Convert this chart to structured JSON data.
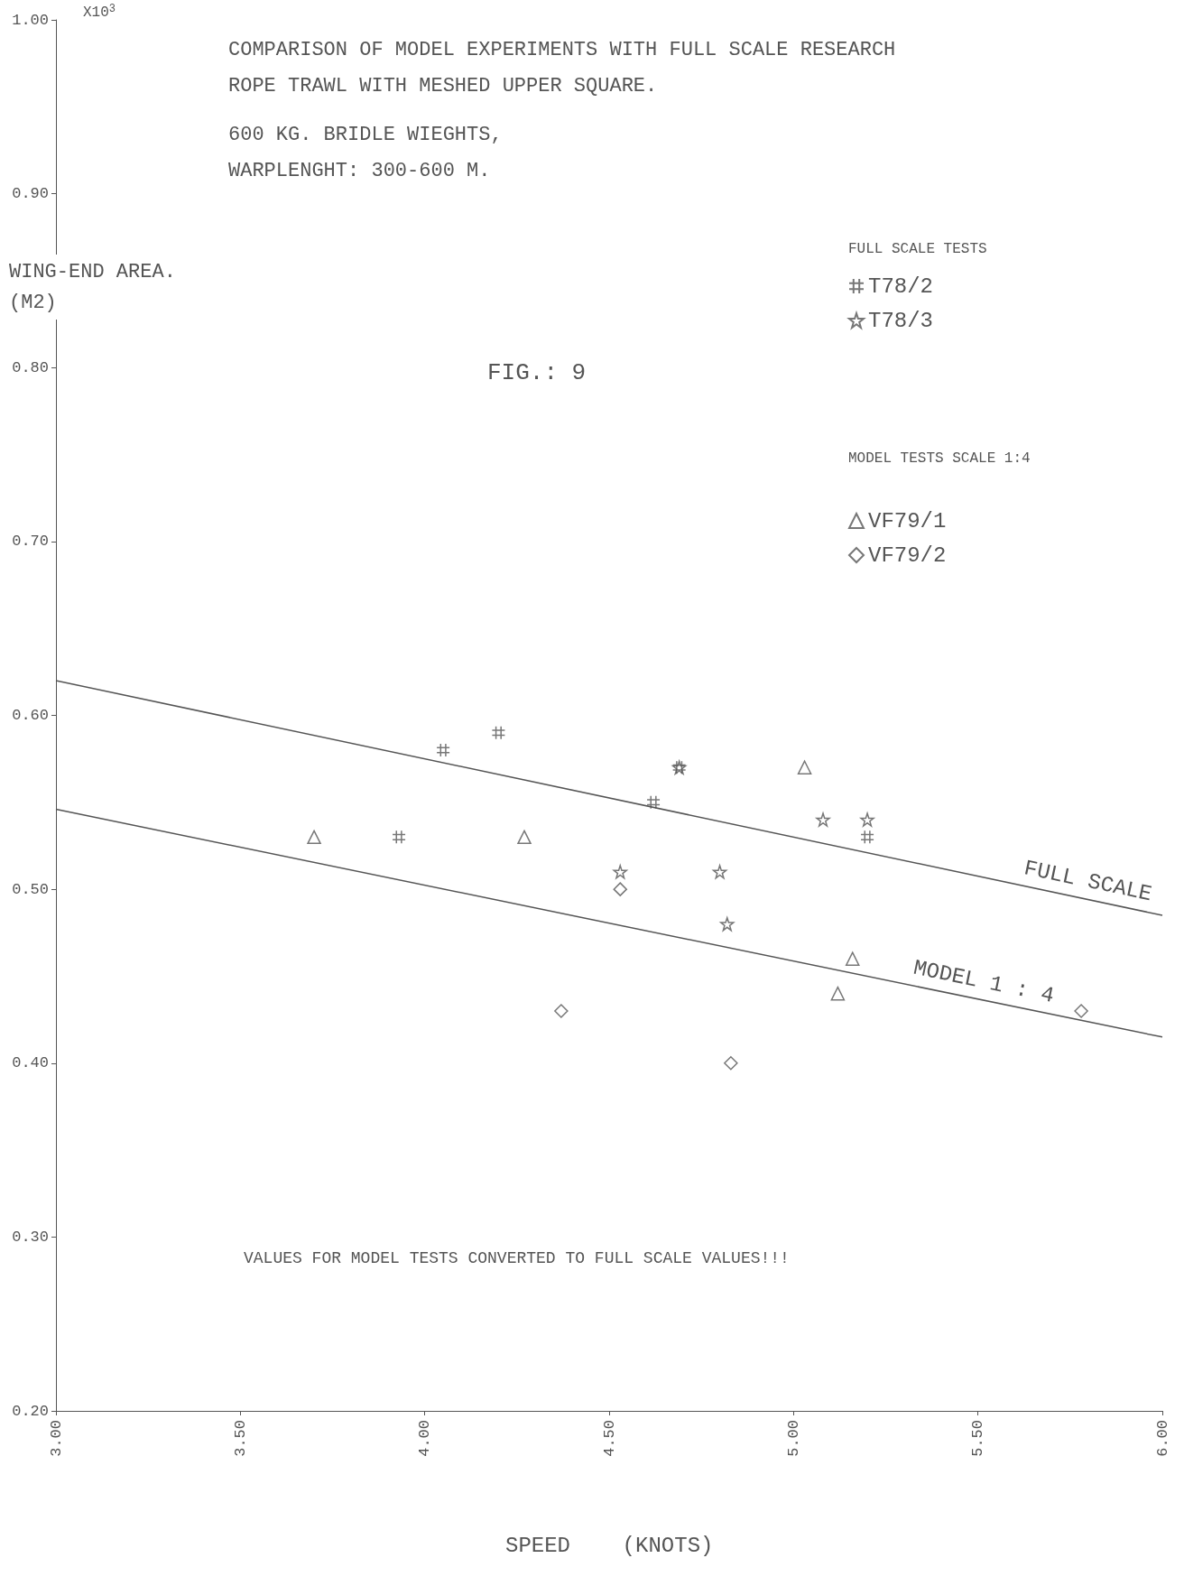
{
  "chart_data": {
    "type": "scatter",
    "title": "COMPARISON OF MODEL EXPERIMENTS WITH FULL SCALE RESEARCH\nROPE TRAWL WITH MESHED UPPER SQUARE.",
    "subtitle": "600 KG. BRIDLE WIEGHTS,\nWARPLENGHT: 300-600 M.",
    "xlabel": "SPEED    (KNOTS)",
    "ylabel": "WING-END AREA.\n(M2)",
    "annotations": [
      "X10$^{3}$",
      "FIG.: 9",
      "VALUES FOR MODEL TESTS CONVERTED TO FULL SCALE VALUES!!!",
      "FULL SCALE TESTS",
      "MODEL TESTS SCALE 1:4"
    ],
    "xlim": [
      3,
      6
    ],
    "xticks": [
      {
        "value": 3,
        "label": "3.00"
      },
      {
        "value": 3.5,
        "label": "3.50"
      },
      {
        "value": 4,
        "label": "4.00"
      },
      {
        "value": 4.5,
        "label": "4.50"
      },
      {
        "value": 5,
        "label": "5.00"
      },
      {
        "value": 5.5,
        "label": "5.50"
      },
      {
        "value": 6,
        "label": "6.00"
      }
    ],
    "ylim": [
      0.2,
      1
    ],
    "yticks": [
      {
        "value": 0.2,
        "label": "0.20"
      },
      {
        "value": 0.3,
        "label": "0.30"
      },
      {
        "value": 0.4,
        "label": "0.40"
      },
      {
        "value": 0.5,
        "label": "0.50"
      },
      {
        "value": 0.6,
        "label": "0.60"
      },
      {
        "value": 0.7,
        "label": "0.70"
      },
      {
        "value": 0.8,
        "label": "0.80"
      },
      {
        "value": 0.9,
        "label": "0.90"
      },
      {
        "value": 1,
        "label": "1.00"
      }
    ],
    "grid": false,
    "legend": "top right",
    "series": [
      {
        "name": "T78/2",
        "color": "#555555",
        "marker": "cross",
        "x": [
          4.05,
          4.2,
          3.93,
          4.62,
          4.69,
          5.2
        ],
        "values": [
          0.58,
          0.59,
          0.53,
          0.55,
          0.57,
          0.53
        ]
      },
      {
        "name": "T78/3",
        "color": "#555555",
        "marker": "star",
        "x": [
          4.53,
          4.8,
          4.82,
          5.08,
          5.2,
          4.69
        ],
        "values": [
          0.51,
          0.51,
          0.48,
          0.54,
          0.54,
          0.57
        ]
      },
      {
        "name": "VF79/1",
        "color": "#555555",
        "marker": "triangle",
        "x": [
          3.7,
          4.27,
          5.03,
          5.16,
          5.12
        ],
        "values": [
          0.53,
          0.53,
          0.57,
          0.46,
          0.44
        ]
      },
      {
        "name": "VF79/2",
        "color": "#555555",
        "marker": "diamond",
        "x": [
          4.53,
          4.37,
          4.83,
          5.78
        ],
        "values": [
          0.5,
          0.43,
          0.4,
          0.43
        ]
      },
      {
        "name": "FULL SCALE",
        "type": "line",
        "color": "#555555",
        "line_style": "solid",
        "marker": "none",
        "x": [
          3,
          6
        ],
        "values": [
          0.62,
          0.485
        ]
      },
      {
        "name": "MODEL 1 : 4",
        "type": "line",
        "color": "#555555",
        "line_style": "solid",
        "marker": "none",
        "x": [
          3,
          6
        ],
        "values": [
          0.546,
          0.415
        ]
      }
    ]
  }
}
